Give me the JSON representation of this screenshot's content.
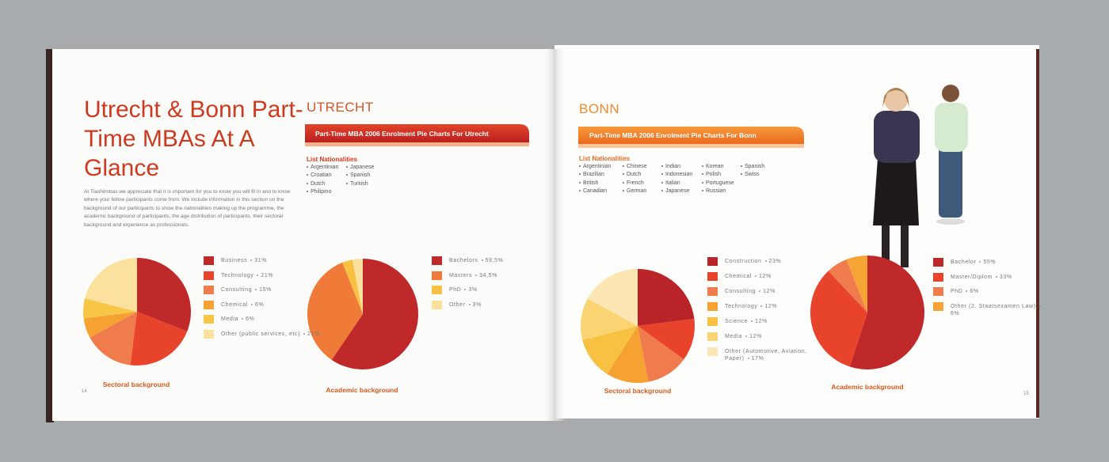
{
  "title": "Utrecht & Bonn Part-Time MBAs At A Glance",
  "intro": "At TiasNimbas we appreciate that it is important for you to know you will fit in and to know where your fellow participants come from. We include information in this section on the background of our participants to show the nationalities making up the programme, the academic background of participants, the age distribution of participants, their sectoral background and experience as professionals.",
  "page_numbers": [
    "14",
    "15"
  ],
  "utrecht": {
    "city": "UTRECHT",
    "banner": "Part-Time MBA 2006 Enrolment Pie Charts For Utrecht",
    "nationalities_title": "List Nationalities",
    "nationalities": [
      [
        "Argentinian",
        "Croatian",
        "Dutch",
        "Philipino"
      ],
      [
        "Japanese",
        "Spanish",
        "Turkish"
      ]
    ]
  },
  "bonn": {
    "city": "BONN",
    "banner": "Part-Time MBA 2006 Enrolment Pie Charts For Bonn",
    "nationalities_title": "List Nationalities",
    "nationalities": [
      [
        "Argentinian",
        "Brazilian",
        "British",
        "Canadian"
      ],
      [
        "Chinese",
        "Dutch",
        "French",
        "German"
      ],
      [
        "Indian",
        "Indonesian",
        "Italian",
        "Japanese"
      ],
      [
        "Korean",
        "Polish",
        "Portuguese",
        "Russian"
      ],
      [
        "Spanish",
        "Swiss"
      ]
    ]
  },
  "chart_data": [
    {
      "type": "pie",
      "title": "Sectoral background",
      "categories": [
        "Business",
        "Technology",
        "Consulting",
        "Chemical",
        "Media",
        "Other (public services, etc)"
      ],
      "values": [
        31,
        21,
        15,
        6,
        6,
        21
      ],
      "value_labels": [
        "31%",
        "21%",
        "15%",
        "6%",
        "6%",
        "21%"
      ],
      "colors": [
        "#c0292a",
        "#e8432b",
        "#f07b4c",
        "#f5a233",
        "#f8c646",
        "#fbe09e"
      ]
    },
    {
      "type": "pie",
      "title": "Academic background",
      "categories": [
        "Bachelors",
        "Masters",
        "PhD",
        "Other"
      ],
      "values": [
        59.5,
        34.5,
        3,
        3
      ],
      "value_labels": [
        "59,5%",
        "34,5%",
        "3%",
        "3%"
      ],
      "colors": [
        "#c0292a",
        "#f07a38",
        "#f8c142",
        "#fbe09e"
      ]
    },
    {
      "type": "pie",
      "title": "Sectoral background",
      "categories": [
        "Construction",
        "Chemical",
        "Consulting",
        "Technology",
        "Science",
        "Media",
        "Other (Automotive, Aviation, Paper)"
      ],
      "values": [
        23,
        12,
        12,
        12,
        12,
        12,
        17
      ],
      "value_labels": [
        "23%",
        "12%",
        "12%",
        "12%",
        "12%",
        "12%",
        "17%"
      ],
      "colors": [
        "#b82427",
        "#e8432b",
        "#f07b4c",
        "#f5a233",
        "#f8c142",
        "#fad472",
        "#fbe6b4"
      ]
    },
    {
      "type": "pie",
      "title": "Academic background",
      "categories": [
        "Bachelor",
        "Master/Diplom",
        "PhD",
        "Other (2. Staatsexamen Law)"
      ],
      "values": [
        55,
        33,
        6,
        6
      ],
      "value_labels": [
        "55%",
        "33%",
        "6%",
        "6%"
      ],
      "colors": [
        "#c0292a",
        "#e8432b",
        "#f07b4c",
        "#f5a535"
      ]
    }
  ]
}
